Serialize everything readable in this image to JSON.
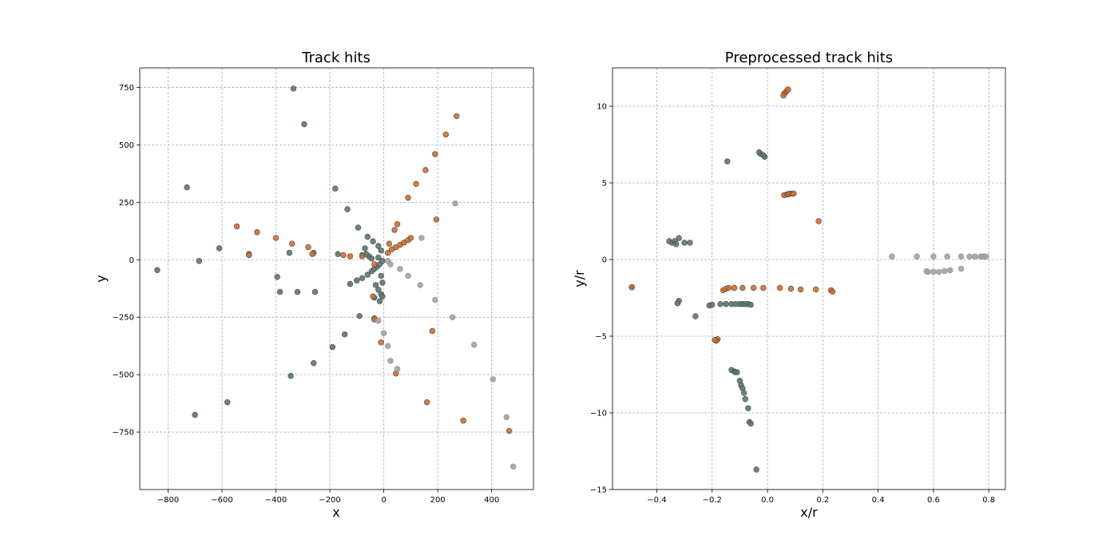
{
  "colors": {
    "dark": "#5f7570",
    "orange": "#d9692b",
    "light": "#a3a3a3",
    "background": "#ffffff"
  },
  "chart_data": [
    {
      "type": "scatter",
      "title": "Track hits",
      "xlabel": "x",
      "ylabel": "y",
      "xlim": [
        -905,
        555
      ],
      "ylim": [
        -1000,
        835
      ],
      "grid": true,
      "xticks": [
        -800,
        -600,
        -400,
        -200,
        0,
        200,
        400
      ],
      "yticks": [
        -750,
        -500,
        -250,
        0,
        250,
        500,
        750
      ],
      "xtick_labels": [
        "−800",
        "−600",
        "−400",
        "−200",
        "0",
        "200",
        "400"
      ],
      "ytick_labels": [
        "−750",
        "−500",
        "−250",
        "0",
        "250",
        "500",
        "750"
      ],
      "series": [
        {
          "color_key": "dark",
          "points": [
            [
              -335,
              745
            ],
            [
              -295,
              590
            ],
            [
              -730,
              315
            ],
            [
              -180,
              310
            ],
            [
              -135,
              220
            ],
            [
              -610,
              50
            ],
            [
              -685,
              -5
            ],
            [
              -840,
              -45
            ],
            [
              -500,
              25
            ],
            [
              -350,
              30
            ],
            [
              -260,
              30
            ],
            [
              -170,
              25
            ],
            [
              -80,
              20
            ],
            [
              -55,
              15
            ],
            [
              -20,
              10
            ],
            [
              -395,
              -75
            ],
            [
              -385,
              -140
            ],
            [
              -320,
              -140
            ],
            [
              -255,
              -140
            ],
            [
              -125,
              -105
            ],
            [
              -100,
              -90
            ],
            [
              -80,
              -80
            ],
            [
              -60,
              -65
            ],
            [
              -45,
              -50
            ],
            [
              -35,
              -40
            ],
            [
              -25,
              -30
            ],
            [
              -15,
              -20
            ],
            [
              -30,
              -110
            ],
            [
              -20,
              -130
            ],
            [
              -10,
              -150
            ],
            [
              -15,
              -180
            ],
            [
              -35,
              -165
            ],
            [
              -5,
              -160
            ],
            [
              -90,
              -245
            ],
            [
              -145,
              -325
            ],
            [
              -190,
              -380
            ],
            [
              -260,
              -450
            ],
            [
              -345,
              -505
            ],
            [
              -580,
              -620
            ],
            [
              -700,
              -675
            ],
            [
              -95,
              140
            ],
            [
              -60,
              100
            ],
            [
              -40,
              80
            ],
            [
              -20,
              60
            ],
            [
              -10,
              40
            ],
            [
              -70,
              50
            ],
            [
              -65,
              25
            ],
            [
              -45,
              5
            ],
            [
              -5,
              -5
            ],
            [
              -10,
              -70
            ],
            [
              -5,
              -100
            ]
          ]
        },
        {
          "color_key": "orange",
          "points": [
            [
              -545,
              145
            ],
            [
              -470,
              120
            ],
            [
              -400,
              95
            ],
            [
              -340,
              70
            ],
            [
              -280,
              55
            ],
            [
              -500,
              20
            ],
            [
              -265,
              25
            ],
            [
              -150,
              20
            ],
            [
              -125,
              15
            ],
            [
              -80,
              15
            ],
            [
              -35,
              -20
            ],
            [
              15,
              30
            ],
            [
              30,
              45
            ],
            [
              45,
              55
            ],
            [
              60,
              65
            ],
            [
              75,
              75
            ],
            [
              90,
              85
            ],
            [
              100,
              95
            ],
            [
              20,
              70
            ],
            [
              40,
              130
            ],
            [
              50,
              155
            ],
            [
              90,
              270
            ],
            [
              120,
              330
            ],
            [
              155,
              390
            ],
            [
              190,
              460
            ],
            [
              230,
              545
            ],
            [
              270,
              625
            ],
            [
              195,
              175
            ],
            [
              -35,
              -255
            ],
            [
              -40,
              -160
            ],
            [
              -10,
              -360
            ],
            [
              45,
              -495
            ],
            [
              180,
              -310
            ],
            [
              160,
              -620
            ],
            [
              295,
              -700
            ],
            [
              465,
              -745
            ],
            [
              -35,
              -260
            ]
          ]
        },
        {
          "color_key": "light",
          "points": [
            [
              25,
              -20
            ],
            [
              60,
              -40
            ],
            [
              90,
              -70
            ],
            [
              135,
              -110
            ],
            [
              190,
              -175
            ],
            [
              255,
              -250
            ],
            [
              335,
              -370
            ],
            [
              405,
              -520
            ],
            [
              455,
              -685
            ],
            [
              480,
              -900
            ],
            [
              -20,
              -265
            ],
            [
              0,
              -320
            ],
            [
              15,
              -375
            ],
            [
              25,
              -440
            ],
            [
              50,
              -475
            ],
            [
              140,
              95
            ],
            [
              265,
              245
            ],
            [
              15,
              -5
            ]
          ]
        }
      ]
    },
    {
      "type": "scatter",
      "title": "Preprocessed track hits",
      "xlabel": "x/r",
      "ylabel": "y/r",
      "xlim": [
        -0.56,
        0.86
      ],
      "ylim": [
        -15,
        12.5
      ],
      "grid": true,
      "xticks": [
        -0.4,
        -0.2,
        0.0,
        0.2,
        0.4,
        0.6,
        0.8
      ],
      "yticks": [
        -15,
        -10,
        -5,
        0,
        5,
        10
      ],
      "xtick_labels": [
        "−0.4",
        "−0.2",
        "0.0",
        "0.2",
        "0.4",
        "0.6",
        "0.8"
      ],
      "ytick_labels": [
        "−15",
        "−10",
        "−5",
        "0",
        "5",
        "10"
      ],
      "series": [
        {
          "color_key": "dark",
          "points": [
            [
              -0.01,
              6.7
            ],
            [
              -0.025,
              6.9
            ],
            [
              -0.015,
              6.8
            ],
            [
              -0.03,
              7.0
            ],
            [
              -0.145,
              6.4
            ],
            [
              -0.49,
              -1.8
            ],
            [
              -0.355,
              1.2
            ],
            [
              -0.345,
              1.1
            ],
            [
              -0.335,
              1.2
            ],
            [
              -0.33,
              1.0
            ],
            [
              -0.32,
              1.4
            ],
            [
              -0.3,
              1.1
            ],
            [
              -0.28,
              1.1
            ],
            [
              -0.32,
              -2.7
            ],
            [
              -0.325,
              -2.85
            ],
            [
              -0.26,
              -3.7
            ],
            [
              -0.21,
              -3.0
            ],
            [
              -0.2,
              -2.95
            ],
            [
              -0.17,
              -2.9
            ],
            [
              -0.15,
              -2.9
            ],
            [
              -0.13,
              -2.9
            ],
            [
              -0.115,
              -2.9
            ],
            [
              -0.1,
              -2.9
            ],
            [
              -0.09,
              -2.9
            ],
            [
              -0.08,
              -2.9
            ],
            [
              -0.07,
              -2.9
            ],
            [
              -0.06,
              -2.95
            ],
            [
              -0.13,
              -7.2
            ],
            [
              -0.12,
              -7.3
            ],
            [
              -0.115,
              -7.35
            ],
            [
              -0.11,
              -7.35
            ],
            [
              -0.1,
              -7.9
            ],
            [
              -0.095,
              -8.2
            ],
            [
              -0.09,
              -8.4
            ],
            [
              -0.085,
              -8.7
            ],
            [
              -0.08,
              -9.1
            ],
            [
              -0.07,
              -9.7
            ],
            [
              -0.065,
              -10.6
            ],
            [
              -0.06,
              -10.7
            ],
            [
              -0.04,
              -13.7
            ]
          ]
        },
        {
          "color_key": "orange",
          "points": [
            [
              0.06,
              10.8
            ],
            [
              0.065,
              10.9
            ],
            [
              0.07,
              11.0
            ],
            [
              0.075,
              11.1
            ],
            [
              0.058,
              10.7
            ],
            [
              0.06,
              4.2
            ],
            [
              0.07,
              4.25
            ],
            [
              0.075,
              4.25
            ],
            [
              0.08,
              4.3
            ],
            [
              0.09,
              4.3
            ],
            [
              0.095,
              4.3
            ],
            [
              0.185,
              2.5
            ],
            [
              -0.49,
              -1.8
            ],
            [
              -0.16,
              -2.0
            ],
            [
              -0.15,
              -1.9
            ],
            [
              -0.14,
              -1.85
            ],
            [
              -0.12,
              -1.85
            ],
            [
              -0.09,
              -1.85
            ],
            [
              -0.05,
              -1.85
            ],
            [
              -0.015,
              -1.85
            ],
            [
              0.045,
              -1.85
            ],
            [
              0.085,
              -1.9
            ],
            [
              0.12,
              -1.95
            ],
            [
              0.175,
              -1.95
            ],
            [
              0.23,
              -2.0
            ],
            [
              0.235,
              -2.1
            ],
            [
              -0.18,
              -5.2
            ],
            [
              -0.185,
              -5.3
            ],
            [
              -0.19,
              -5.25
            ]
          ]
        },
        {
          "color_key": "light",
          "points": [
            [
              0.45,
              0.2
            ],
            [
              0.54,
              0.2
            ],
            [
              0.6,
              0.2
            ],
            [
              0.65,
              0.2
            ],
            [
              0.7,
              0.2
            ],
            [
              0.73,
              0.2
            ],
            [
              0.75,
              0.2
            ],
            [
              0.77,
              0.2
            ],
            [
              0.78,
              0.2
            ],
            [
              0.79,
              0.2
            ],
            [
              0.58,
              -0.8
            ],
            [
              0.6,
              -0.8
            ],
            [
              0.62,
              -0.8
            ],
            [
              0.64,
              -0.75
            ],
            [
              0.66,
              -0.7
            ],
            [
              0.7,
              -0.6
            ],
            [
              0.575,
              -0.75
            ]
          ]
        }
      ]
    }
  ]
}
